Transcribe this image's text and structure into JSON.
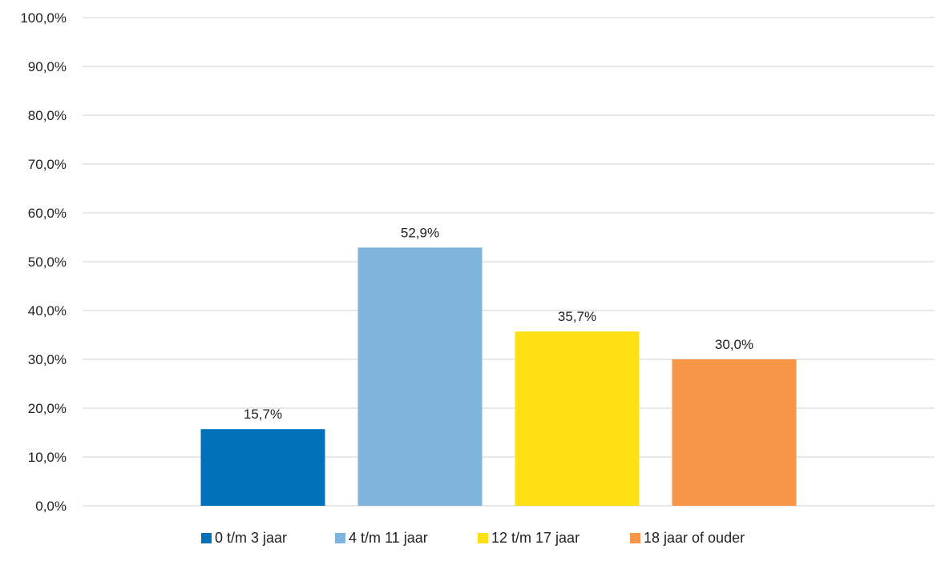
{
  "chart_data": {
    "type": "bar",
    "categories": [
      "0 t/m 3 jaar",
      "4 t/m 11 jaar",
      "12 t/m 17 jaar",
      "18 jaar of ouder"
    ],
    "values": [
      15.7,
      52.9,
      35.7,
      30.0
    ],
    "value_labels": [
      "15,7%",
      "52,9%",
      "35,7%",
      "30,0%"
    ],
    "colors": [
      "#0070B8",
      "#7FB5DC",
      "#FFE014",
      "#F79646"
    ],
    "title": "",
    "xlabel": "",
    "ylabel": "",
    "ylim": [
      0,
      100
    ],
    "y_ticks": [
      0,
      10,
      20,
      30,
      40,
      50,
      60,
      70,
      80,
      90,
      100
    ],
    "y_tick_labels": [
      "0,0%",
      "10,0%",
      "20,0%",
      "30,0%",
      "40,0%",
      "50,0%",
      "60,0%",
      "70,0%",
      "80,0%",
      "90,0%",
      "100,0%"
    ],
    "grid": true,
    "gridline_color": "#D9D9D9",
    "legend": {
      "placement": "bottom",
      "entries": [
        "0 t/m 3 jaar",
        "4 t/m 11 jaar",
        "12 t/m 17 jaar",
        "18 jaar of ouder"
      ]
    }
  }
}
